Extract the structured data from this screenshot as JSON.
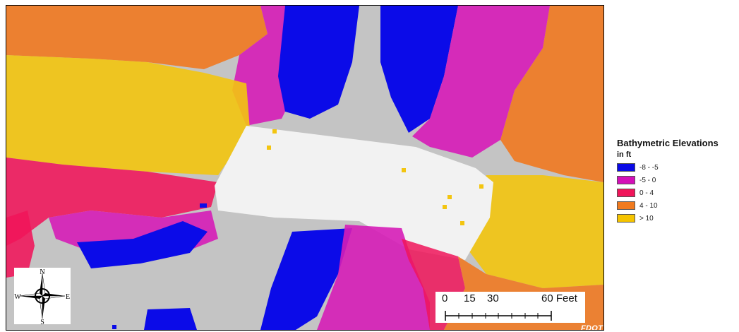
{
  "legend": {
    "title": "Bathymetric Elevations",
    "subtitle": "in ft",
    "classes": [
      {
        "label": "-8 - -5",
        "color": "#0a0ae6"
      },
      {
        "label": "-5 - 0",
        "color": "#d40fb8"
      },
      {
        "label": "0 - 4",
        "color": "#f0155a"
      },
      {
        "label": "4 - 10",
        "color": "#f07a1e"
      },
      {
        "label": "> 10",
        "color": "#f5c400"
      }
    ]
  },
  "compass": {
    "n": "N",
    "s": "S",
    "e": "E",
    "w": "W"
  },
  "scale_bar": {
    "ticks": [
      "0",
      "15",
      "30"
    ],
    "end_label": "60 Feet"
  },
  "credit": "FDOT"
}
